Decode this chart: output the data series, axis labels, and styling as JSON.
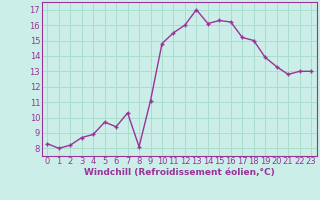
{
  "x": [
    0,
    1,
    2,
    3,
    4,
    5,
    6,
    7,
    8,
    9,
    10,
    11,
    12,
    13,
    14,
    15,
    16,
    17,
    18,
    19,
    20,
    21,
    22,
    23
  ],
  "y": [
    8.3,
    8.0,
    8.2,
    8.7,
    8.9,
    9.7,
    9.4,
    10.3,
    8.1,
    11.1,
    14.8,
    15.5,
    16.0,
    17.0,
    16.1,
    16.3,
    16.2,
    15.2,
    15.0,
    13.9,
    13.3,
    12.8,
    13.0,
    13.0
  ],
  "line_color": "#993399",
  "marker": "+",
  "marker_size": 3.5,
  "bg_color": "#cceee8",
  "grid_color": "#aaddcc",
  "xlabel": "Windchill (Refroidissement éolien,°C)",
  "xlim": [
    -0.5,
    23.5
  ],
  "ylim": [
    7.5,
    17.5
  ],
  "yticks": [
    8,
    9,
    10,
    11,
    12,
    13,
    14,
    15,
    16,
    17
  ],
  "xticks": [
    0,
    1,
    2,
    3,
    4,
    5,
    6,
    7,
    8,
    9,
    10,
    11,
    12,
    13,
    14,
    15,
    16,
    17,
    18,
    19,
    20,
    21,
    22,
    23
  ],
  "xlabel_fontsize": 6.5,
  "tick_fontsize": 6,
  "tick_color": "#993399",
  "label_color": "#993399",
  "spine_color": "#993399",
  "line_width": 1.0,
  "marker_edge_width": 1.0
}
